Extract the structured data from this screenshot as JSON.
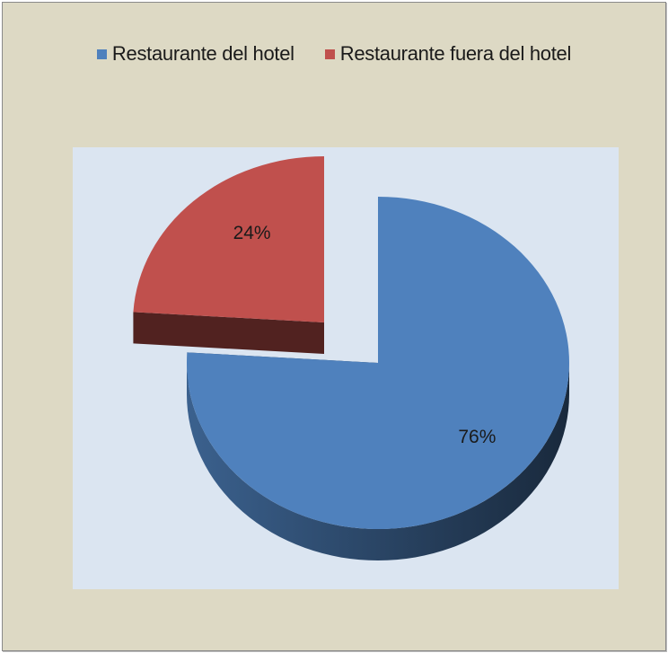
{
  "chart_data": {
    "type": "pie",
    "style": "3d-exploded",
    "categories": [
      "Restaurante del hotel",
      "Restaurante fuera del hotel"
    ],
    "values": [
      76,
      24
    ],
    "data_labels": [
      "76%",
      "24%"
    ],
    "colors": [
      "#4f81bd",
      "#c0504d"
    ],
    "legend_position": "top",
    "title": ""
  }
}
